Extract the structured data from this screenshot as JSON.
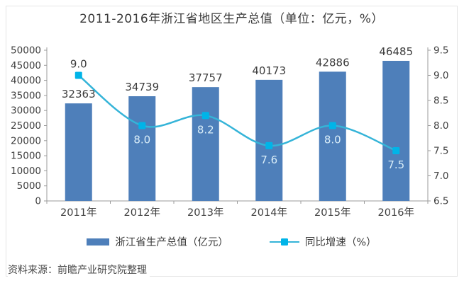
{
  "title": "2011-2016年浙江省地区生产总值（单位：亿元，%）",
  "source": "资料来源：前瞻产业研究院整理",
  "chart_data": {
    "type": "bar+line",
    "title": "2011-2016年浙江省地区生产总值（单位：亿元，%）",
    "categories": [
      "2011年",
      "2012年",
      "2013年",
      "2014年",
      "2015年",
      "2016年"
    ],
    "series": [
      {
        "name": "浙江省生产总值（亿元）",
        "type": "bar",
        "axis": "left",
        "values": [
          32363,
          34739,
          37757,
          40173,
          42886,
          46485
        ],
        "color": "#4E7FBA"
      },
      {
        "name": "同比增速（%）",
        "type": "line",
        "axis": "right",
        "values": [
          9.0,
          8.0,
          8.2,
          7.6,
          8.0,
          7.5
        ],
        "color": "#35B4D8",
        "marker_color": "#00B4E8",
        "label_positions": [
          "above",
          "below",
          "below",
          "below",
          "below",
          "below"
        ],
        "label_styles": [
          "dark",
          "light",
          "light",
          "light",
          "light",
          "light"
        ]
      }
    ],
    "left_axis": {
      "min": 0,
      "max": 50000,
      "step": 5000,
      "ticks": [
        0,
        5000,
        10000,
        15000,
        20000,
        25000,
        30000,
        35000,
        40000,
        45000,
        50000
      ]
    },
    "right_axis": {
      "min": 6.5,
      "max": 9.5,
      "step": 0.5,
      "ticks": [
        6.5,
        7.0,
        7.5,
        8.0,
        8.5,
        9.0,
        9.5
      ]
    },
    "grid": false,
    "legend_position": "bottom",
    "axis_color": "#9b9b9b",
    "text_color": "#3c3c3c"
  }
}
